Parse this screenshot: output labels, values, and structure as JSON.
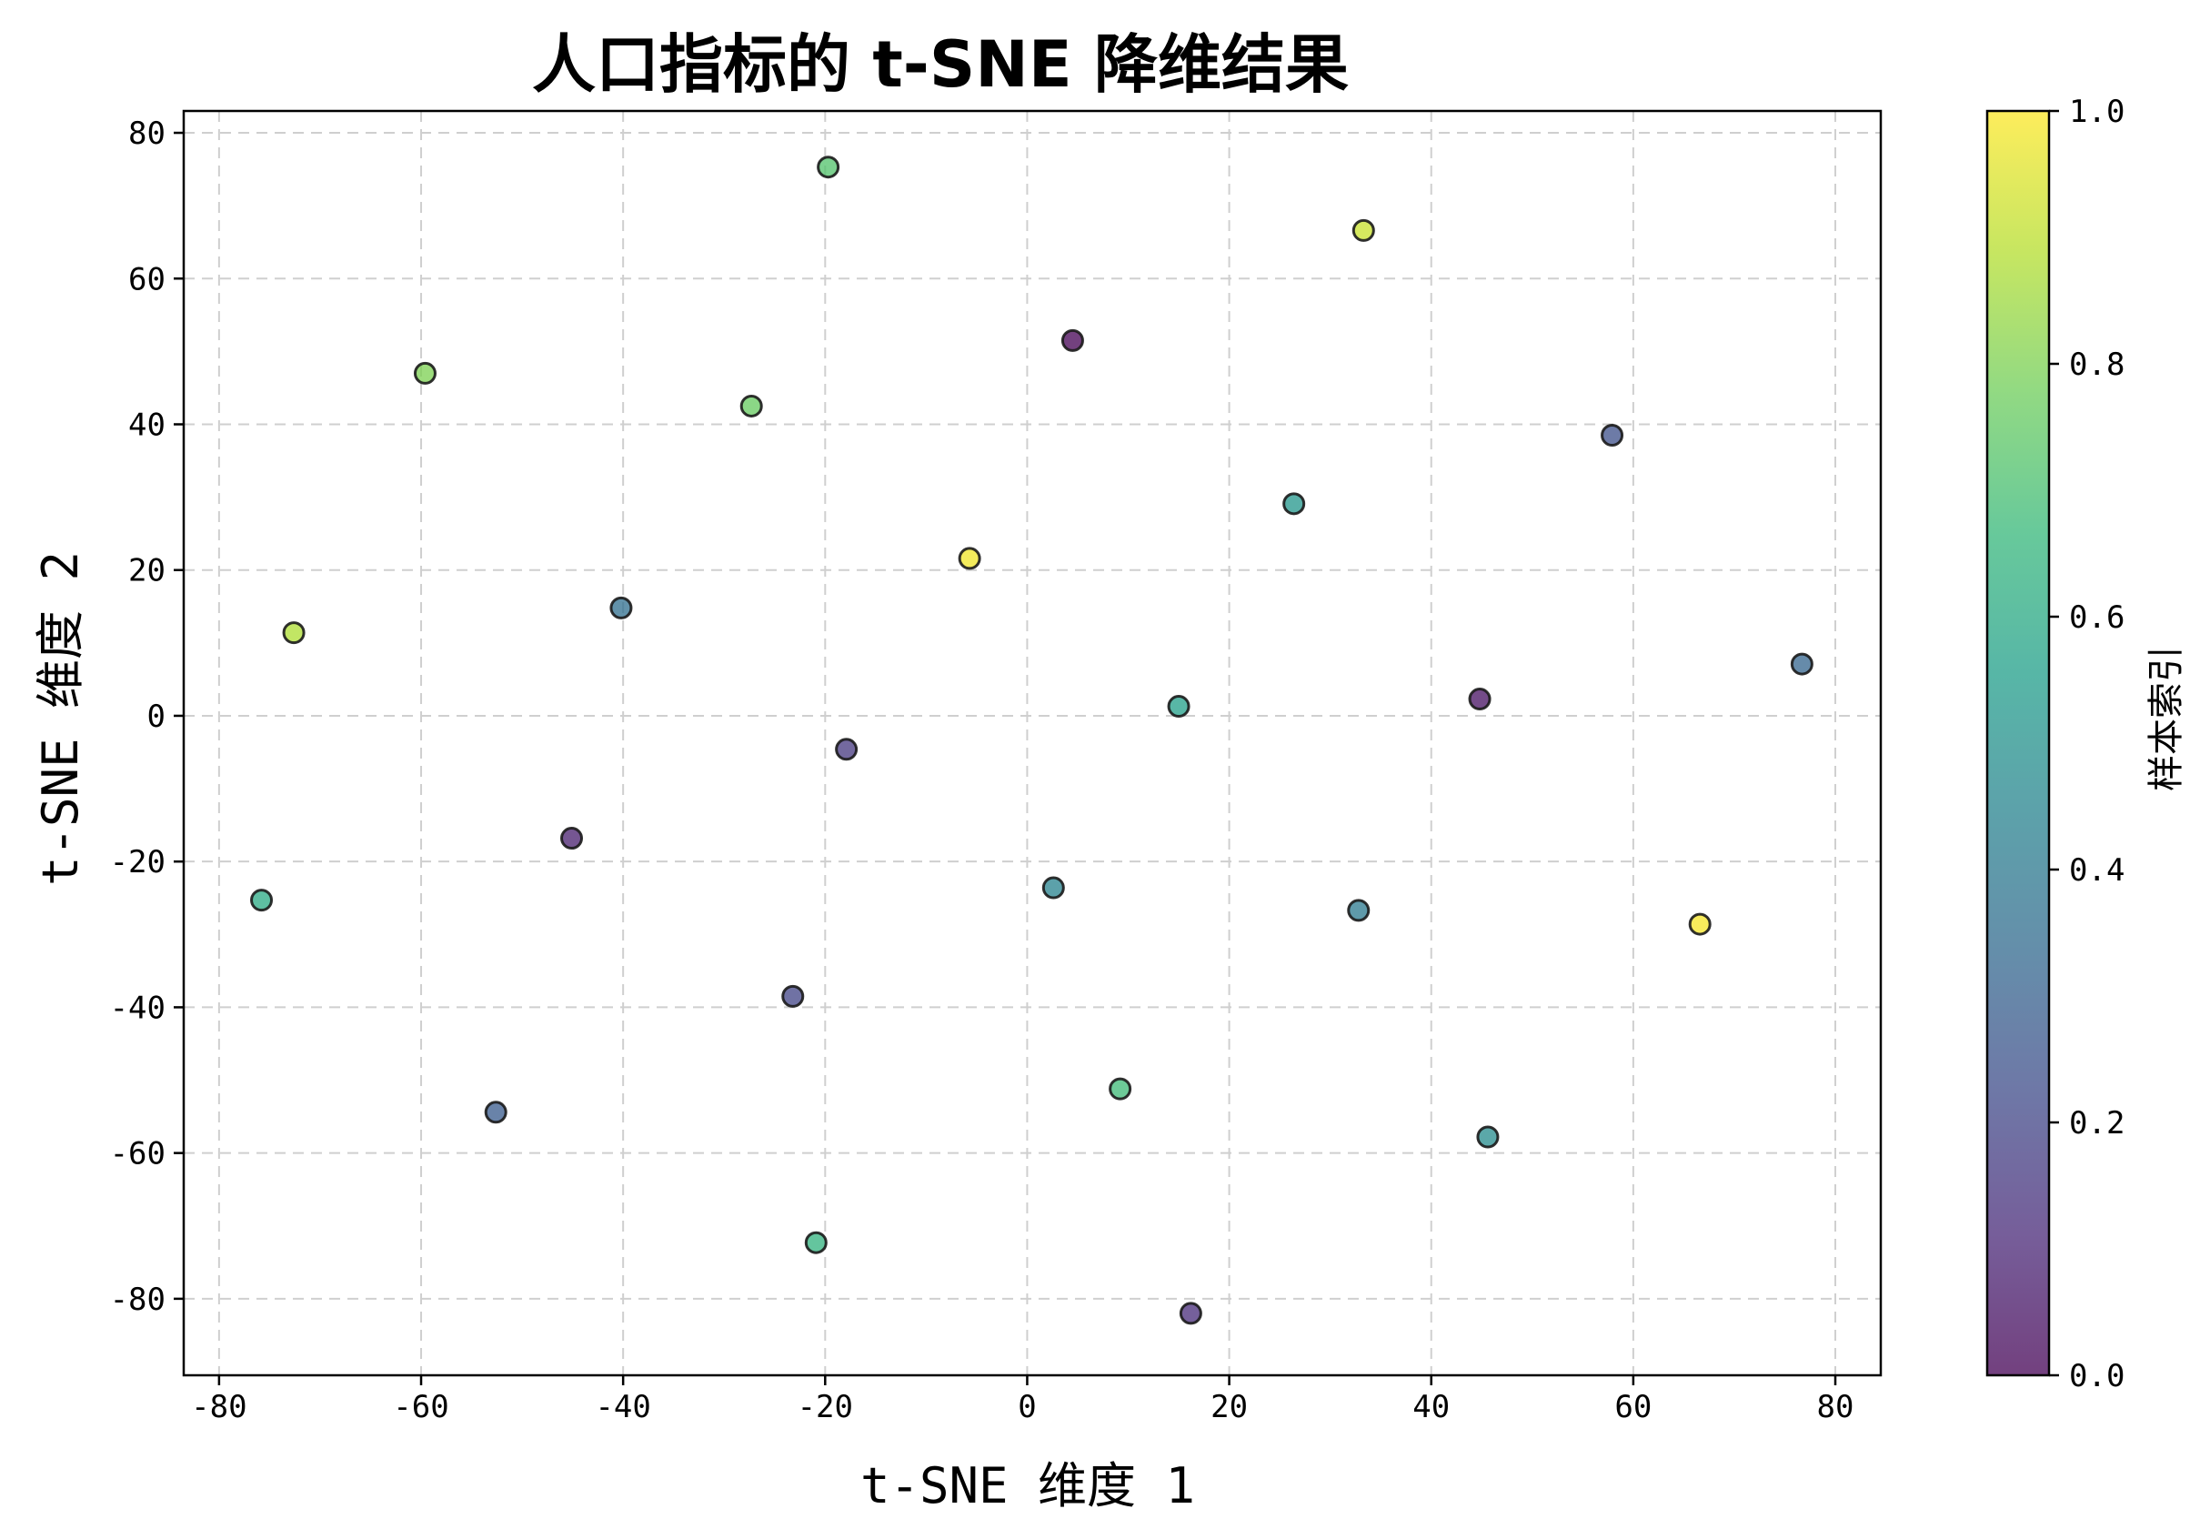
{
  "chart_data": {
    "type": "scatter",
    "title": "人口指标的 t-SNE 降维结果",
    "xlabel": "t-SNE 维度 1",
    "ylabel": "t-SNE 维度 2",
    "xlim": [
      -83.5,
      84.5
    ],
    "ylim": [
      -90.5,
      83
    ],
    "xticks": [
      -80,
      -60,
      -40,
      -20,
      0,
      20,
      40,
      60,
      80
    ],
    "yticks": [
      -80,
      -60,
      -40,
      -20,
      0,
      20,
      40,
      60,
      80
    ],
    "grid": true,
    "colormap": "viridis",
    "point_alpha": 0.75,
    "colorbar": {
      "label": "样本索引",
      "range": [
        0.0,
        1.0
      ],
      "ticks": [
        "0.0",
        "0.2",
        "0.4",
        "0.6",
        "0.8",
        "1.0"
      ]
    },
    "points": [
      {
        "x": 4.5,
        "y": 51.5,
        "c": 0.0
      },
      {
        "x": 44.8,
        "y": 2.3,
        "c": 0.04
      },
      {
        "x": -45.1,
        "y": -16.8,
        "c": 0.08
      },
      {
        "x": 16.2,
        "y": -82.0,
        "c": 0.12
      },
      {
        "x": -17.9,
        "y": -4.6,
        "c": 0.16
      },
      {
        "x": -23.2,
        "y": -38.5,
        "c": 0.2
      },
      {
        "x": 57.9,
        "y": 38.5,
        "c": 0.24
      },
      {
        "x": -52.6,
        "y": -54.4,
        "c": 0.28
      },
      {
        "x": 76.7,
        "y": 7.1,
        "c": 0.32
      },
      {
        "x": -40.2,
        "y": 14.8,
        "c": 0.36
      },
      {
        "x": 32.8,
        "y": -26.7,
        "c": 0.4
      },
      {
        "x": 2.6,
        "y": -23.6,
        "c": 0.44
      },
      {
        "x": 45.6,
        "y": -57.8,
        "c": 0.48
      },
      {
        "x": 26.4,
        "y": 29.1,
        "c": 0.52
      },
      {
        "x": 15.0,
        "y": 1.3,
        "c": 0.56
      },
      {
        "x": -75.8,
        "y": -25.3,
        "c": 0.6
      },
      {
        "x": -20.9,
        "y": -72.3,
        "c": 0.64
      },
      {
        "x": 9.2,
        "y": -51.2,
        "c": 0.68
      },
      {
        "x": -19.7,
        "y": 75.3,
        "c": 0.72
      },
      {
        "x": -27.3,
        "y": 42.5,
        "c": 0.76
      },
      {
        "x": -59.6,
        "y": 47.0,
        "c": 0.8
      },
      {
        "x": -72.6,
        "y": 11.4,
        "c": 0.88
      },
      {
        "x": 33.3,
        "y": 66.6,
        "c": 0.92
      },
      {
        "x": -5.7,
        "y": 21.6,
        "c": 0.98
      },
      {
        "x": 66.6,
        "y": -28.6,
        "c": 0.99
      }
    ]
  }
}
